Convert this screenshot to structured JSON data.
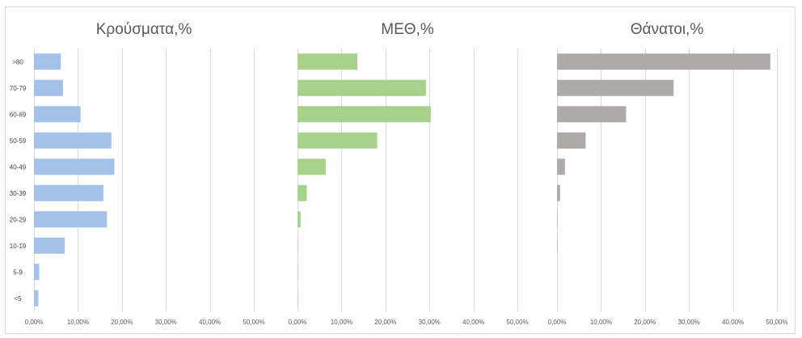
{
  "chart_data": {
    "type": "bar",
    "orientation": "horizontal",
    "categories": [
      ">80",
      "70-79",
      "60-69",
      "50-59",
      "40-49",
      "30-39",
      "20-29",
      "10-19",
      "5-9",
      "<5"
    ],
    "grid": true,
    "panels": [
      {
        "title": "Κρούσματα,%",
        "color": "#a4c2e8",
        "xlim": [
          0,
          0.5
        ],
        "ticks": [
          "0,00%",
          "10,00%",
          "20,00%",
          "30,00%",
          "40,00%",
          "50,00%"
        ],
        "values": [
          0.061,
          0.066,
          0.106,
          0.176,
          0.183,
          0.158,
          0.166,
          0.07,
          0.012,
          0.01
        ]
      },
      {
        "title": "ΜΕΘ,%",
        "color": "#a9d18e",
        "xlim": [
          0,
          0.5
        ],
        "ticks": [
          "0,00%",
          "10,00%",
          "20,00%",
          "30,00%",
          "40,00%",
          "50,00%"
        ],
        "values": [
          0.136,
          0.292,
          0.303,
          0.181,
          0.064,
          0.021,
          0.007,
          0.001,
          0.001,
          0.001
        ]
      },
      {
        "title": "Θάνατοι,%",
        "color": "#aeaaaa",
        "xlim": [
          0,
          0.5
        ],
        "ticks": [
          "0,00%",
          "10,00%",
          "20,00%",
          "30,00%",
          "40,00%",
          "50,00%"
        ],
        "values": [
          0.485,
          0.265,
          0.157,
          0.065,
          0.018,
          0.007,
          0.001,
          0.001,
          0,
          0
        ]
      }
    ]
  }
}
